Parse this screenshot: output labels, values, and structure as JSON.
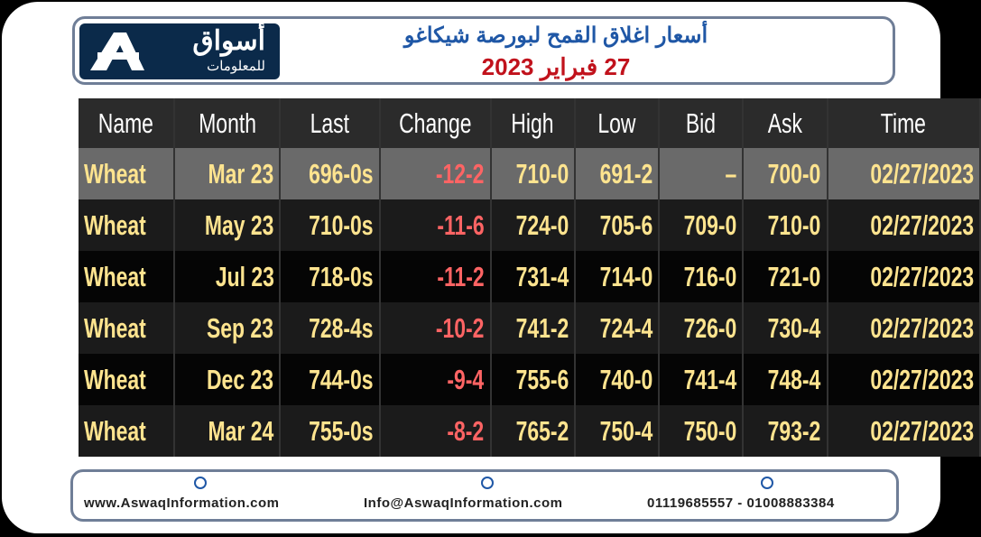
{
  "header": {
    "logo_text": "أسواق",
    "logo_subtext": "للمعلومات",
    "title": "أسعار اغلاق القمح لبورصة شيكاغو",
    "date": "27 فبراير 2023"
  },
  "table": {
    "columns": [
      "Name",
      "Month",
      "Last",
      "Change",
      "High",
      "Low",
      "Bid",
      "Ask",
      "Time"
    ],
    "rows": [
      [
        "Wheat",
        "Mar 23",
        "696-0s",
        "-12-2",
        "710-0",
        "691-2",
        "–",
        "700-0",
        "02/27/2023"
      ],
      [
        "Wheat",
        "May 23",
        "710-0s",
        "-11-6",
        "724-0",
        "705-6",
        "709-0",
        "710-0",
        "02/27/2023"
      ],
      [
        "Wheat",
        "Jul 23",
        "718-0s",
        "-11-2",
        "731-4",
        "714-0",
        "716-0",
        "721-0",
        "02/27/2023"
      ],
      [
        "Wheat",
        "Sep 23",
        "728-4s",
        "-10-2",
        "741-2",
        "724-4",
        "726-0",
        "730-4",
        "02/27/2023"
      ],
      [
        "Wheat",
        "Dec 23",
        "744-0s",
        "-9-4",
        "755-6",
        "740-0",
        "741-4",
        "748-4",
        "02/27/2023"
      ],
      [
        "Wheat",
        "Mar 24",
        "755-0s",
        "-8-2",
        "765-2",
        "750-4",
        "750-0",
        "793-2",
        "02/27/2023"
      ]
    ]
  },
  "footer": {
    "website": "www.AswaqInformation.com",
    "email": "Info@AswaqInformation.com",
    "phone": "01119685557 - 01008883384"
  }
}
